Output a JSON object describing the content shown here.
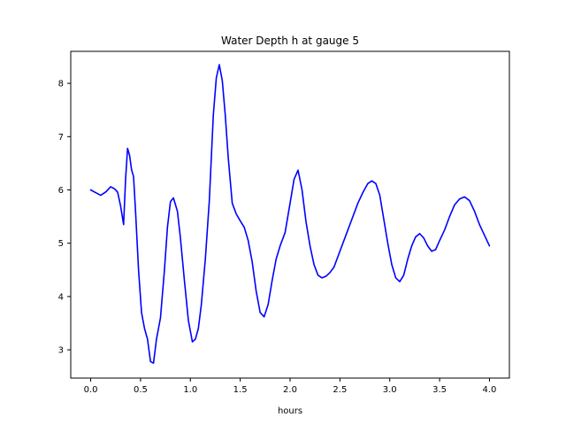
{
  "chart_data": {
    "type": "line",
    "title": "Water Depth h at gauge 5",
    "xlabel": "hours",
    "ylabel": "",
    "xlim": [
      -0.2,
      4.2
    ],
    "ylim": [
      2.47,
      8.6
    ],
    "xticks": [
      0.0,
      0.5,
      1.0,
      1.5,
      2.0,
      2.5,
      3.0,
      3.5,
      4.0
    ],
    "xtick_labels": [
      "0.0",
      "0.5",
      "1.0",
      "1.5",
      "2.0",
      "2.5",
      "3.0",
      "3.5",
      "4.0"
    ],
    "yticks": [
      3,
      4,
      5,
      6,
      7,
      8
    ],
    "ytick_labels": [
      "3",
      "4",
      "5",
      "6",
      "7",
      "8"
    ],
    "grid": false,
    "series": [
      {
        "color": "#0000ff",
        "x": [
          0.0,
          0.05,
          0.1,
          0.15,
          0.2,
          0.24,
          0.27,
          0.3,
          0.33,
          0.35,
          0.37,
          0.39,
          0.41,
          0.43,
          0.45,
          0.48,
          0.51,
          0.54,
          0.57,
          0.6,
          0.63,
          0.66,
          0.7,
          0.74,
          0.77,
          0.8,
          0.83,
          0.87,
          0.9,
          0.94,
          0.98,
          1.02,
          1.05,
          1.08,
          1.11,
          1.15,
          1.19,
          1.23,
          1.26,
          1.29,
          1.32,
          1.35,
          1.38,
          1.42,
          1.46,
          1.5,
          1.54,
          1.58,
          1.62,
          1.66,
          1.7,
          1.74,
          1.78,
          1.82,
          1.86,
          1.9,
          1.95,
          2.0,
          2.04,
          2.08,
          2.12,
          2.16,
          2.2,
          2.24,
          2.28,
          2.32,
          2.36,
          2.4,
          2.44,
          2.48,
          2.53,
          2.58,
          2.63,
          2.68,
          2.73,
          2.78,
          2.82,
          2.86,
          2.9,
          2.94,
          2.98,
          3.02,
          3.06,
          3.1,
          3.14,
          3.18,
          3.22,
          3.26,
          3.3,
          3.34,
          3.38,
          3.42,
          3.46,
          3.5,
          3.55,
          3.6,
          3.65,
          3.7,
          3.75,
          3.8,
          3.85,
          3.9,
          3.95,
          4.0
        ],
        "values": [
          6.0,
          5.95,
          5.9,
          5.96,
          6.06,
          6.02,
          5.96,
          5.7,
          5.35,
          6.2,
          6.78,
          6.65,
          6.38,
          6.25,
          5.6,
          4.5,
          3.7,
          3.4,
          3.2,
          2.78,
          2.75,
          3.2,
          3.6,
          4.5,
          5.3,
          5.78,
          5.85,
          5.6,
          5.1,
          4.3,
          3.55,
          3.15,
          3.2,
          3.4,
          3.85,
          4.7,
          5.8,
          7.4,
          8.1,
          8.35,
          8.05,
          7.4,
          6.6,
          5.75,
          5.55,
          5.42,
          5.3,
          5.05,
          4.65,
          4.1,
          3.7,
          3.62,
          3.85,
          4.3,
          4.7,
          4.95,
          5.2,
          5.75,
          6.2,
          6.37,
          6.0,
          5.4,
          4.95,
          4.6,
          4.4,
          4.35,
          4.38,
          4.45,
          4.55,
          4.75,
          5.0,
          5.25,
          5.5,
          5.75,
          5.95,
          6.12,
          6.17,
          6.12,
          5.9,
          5.45,
          5.0,
          4.6,
          4.35,
          4.28,
          4.4,
          4.7,
          4.95,
          5.12,
          5.18,
          5.1,
          4.95,
          4.85,
          4.88,
          5.05,
          5.25,
          5.5,
          5.72,
          5.83,
          5.87,
          5.8,
          5.6,
          5.35,
          5.15,
          4.95
        ]
      }
    ]
  }
}
